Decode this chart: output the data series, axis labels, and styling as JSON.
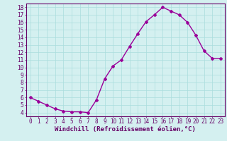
{
  "x": [
    0,
    1,
    2,
    3,
    4,
    5,
    6,
    7,
    8,
    9,
    10,
    11,
    12,
    13,
    14,
    15,
    16,
    17,
    18,
    19,
    20,
    21,
    22,
    23
  ],
  "y": [
    6.0,
    5.5,
    5.0,
    4.5,
    4.2,
    4.1,
    4.1,
    4.0,
    5.7,
    8.5,
    10.2,
    11.0,
    12.8,
    14.5,
    16.1,
    17.0,
    18.0,
    17.5,
    17.0,
    16.0,
    14.3,
    12.2,
    11.2,
    11.2
  ],
  "line_color": "#990099",
  "marker": "D",
  "marker_size": 2.0,
  "bg_color": "#d4f0f0",
  "grid_color": "#aadddd",
  "axis_color": "#660066",
  "xlabel": "Windchill (Refroidissement éolien,°C)",
  "xlabel_fontsize": 6.5,
  "ylabel_ticks": [
    4,
    5,
    6,
    7,
    8,
    9,
    10,
    11,
    12,
    13,
    14,
    15,
    16,
    17,
    18
  ],
  "xlim": [
    -0.5,
    23.5
  ],
  "ylim": [
    3.5,
    18.5
  ],
  "xticks": [
    0,
    1,
    2,
    3,
    4,
    5,
    6,
    7,
    8,
    9,
    10,
    11,
    12,
    13,
    14,
    15,
    16,
    17,
    18,
    19,
    20,
    21,
    22,
    23
  ],
  "tick_fontsize": 5.5,
  "linewidth": 1.0
}
